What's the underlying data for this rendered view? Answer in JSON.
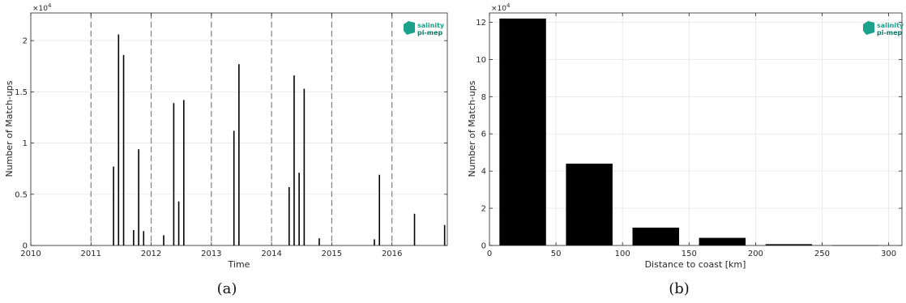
{
  "colors": {
    "bar": "#000000",
    "grid": "#e6e6e6",
    "axis": "#262626",
    "vline": "#808080",
    "logo": "#1aa38a"
  },
  "logo": {
    "line1": "salinity",
    "line2": "pi-mep"
  },
  "captions": {
    "a": "(a)",
    "b": "(b)"
  },
  "chart_data": [
    {
      "type": "bar",
      "panel": "a",
      "xlabel": "Time",
      "ylabel": "Number of Match-ups",
      "y_exponent": "×10",
      "y_exponent_power": "4",
      "xlim": [
        2010,
        2016.92
      ],
      "ylim": [
        0,
        22700
      ],
      "xticks": [
        2010,
        2011,
        2012,
        2013,
        2014,
        2015,
        2016
      ],
      "xtick_labels": [
        "2010",
        "2011",
        "2012",
        "2013",
        "2014",
        "2015",
        "2016"
      ],
      "yticks": [
        0,
        5000,
        10000,
        15000,
        20000
      ],
      "ytick_labels": [
        "0",
        "0.5",
        "1",
        "1.5",
        "2"
      ],
      "year_separators": [
        2011,
        2012,
        2013,
        2014,
        2015,
        2016
      ],
      "bar_width": 0.0215,
      "x": [
        2011.375,
        2011.458,
        2011.542,
        2011.708,
        2011.792,
        2011.875,
        2012.208,
        2012.375,
        2012.458,
        2012.542,
        2013.375,
        2013.458,
        2014.292,
        2014.375,
        2014.458,
        2014.542,
        2014.792,
        2015.708,
        2015.792,
        2016.375,
        2016.875
      ],
      "values": [
        7700,
        20600,
        18600,
        1500,
        9400,
        1400,
        1000,
        13900,
        4300,
        14200,
        11200,
        17700,
        5700,
        16600,
        7100,
        15300,
        700,
        600,
        6900,
        3100,
        2000
      ]
    },
    {
      "type": "bar",
      "panel": "b",
      "xlabel": "Distance to coast [km]",
      "ylabel": "Number of Match-ups",
      "y_exponent": "×10",
      "y_exponent_power": "4",
      "xlim": [
        0,
        310
      ],
      "ylim": [
        0,
        125000
      ],
      "xticks": [
        0,
        50,
        100,
        150,
        200,
        250,
        300
      ],
      "xtick_labels": [
        "0",
        "50",
        "100",
        "150",
        "200",
        "250",
        "300"
      ],
      "yticks": [
        0,
        20000,
        40000,
        60000,
        80000,
        100000,
        120000
      ],
      "ytick_labels": [
        "0",
        "2",
        "4",
        "6",
        "8",
        "10",
        "12"
      ],
      "bar_width": 35,
      "x": [
        25,
        75,
        125,
        175,
        225,
        275
      ],
      "values": [
        122000,
        44000,
        9600,
        4100,
        700,
        150
      ]
    }
  ]
}
